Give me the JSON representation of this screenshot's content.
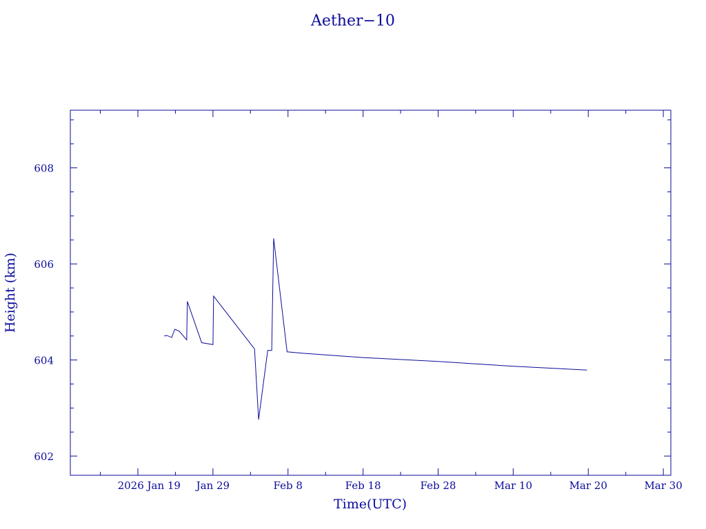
{
  "chart_data": {
    "type": "line",
    "title": "Aether−10",
    "xlabel": "Time(UTC)",
    "ylabel": "Height (km)",
    "color": "#0a0a9a",
    "xlim": [
      "2026-01-10",
      "2026-03-31"
    ],
    "ylim": [
      601.6,
      609.2
    ],
    "y_major_ticks": [
      602,
      604,
      606,
      608
    ],
    "y_minor_step": 0.5,
    "x_ticks": [
      {
        "date": "2026-01-19",
        "label": "2026 Jan 19"
      },
      {
        "date": "2026-01-29",
        "label": "Jan 29"
      },
      {
        "date": "2026-02-08",
        "label": "Feb  8"
      },
      {
        "date": "2026-02-18",
        "label": "Feb 18"
      },
      {
        "date": "2026-02-28",
        "label": "Feb 28"
      },
      {
        "date": "2026-03-10",
        "label": "Mar 10"
      },
      {
        "date": "2026-03-20",
        "label": "Mar 20"
      },
      {
        "date": "2026-03-30",
        "label": "Mar 30"
      }
    ],
    "x_minor_step_days": 5,
    "grid": false,
    "series": [
      {
        "points": [
          [
            "2026-01-22T12:00",
            604.5
          ],
          [
            "2026-01-22T21:00",
            604.51
          ],
          [
            "2026-01-23T12:00",
            604.47
          ],
          [
            "2026-01-23T22:00",
            604.64
          ],
          [
            "2026-01-24T12:00",
            604.6
          ],
          [
            "2026-01-25T12:00",
            604.42
          ],
          [
            "2026-01-25T14:00",
            605.22
          ],
          [
            "2026-01-27T12:00",
            604.36
          ],
          [
            "2026-01-29T00:00",
            604.32
          ],
          [
            "2026-01-29T02:00",
            605.33
          ],
          [
            "2026-02-03T13:00",
            604.23
          ],
          [
            "2026-02-04T02:00",
            602.76
          ],
          [
            "2026-02-05T07:00",
            604.2
          ],
          [
            "2026-02-05T20:00",
            604.2
          ],
          [
            "2026-02-06T02:00",
            606.53
          ],
          [
            "2026-02-07T21:00",
            604.17
          ],
          [
            "2026-02-10T00:00",
            604.14
          ],
          [
            "2026-02-18T00:00",
            604.05
          ],
          [
            "2026-02-28T00:00",
            603.97
          ],
          [
            "2026-03-10T00:00",
            603.87
          ],
          [
            "2026-03-19T20:00",
            603.79
          ]
        ]
      }
    ]
  }
}
